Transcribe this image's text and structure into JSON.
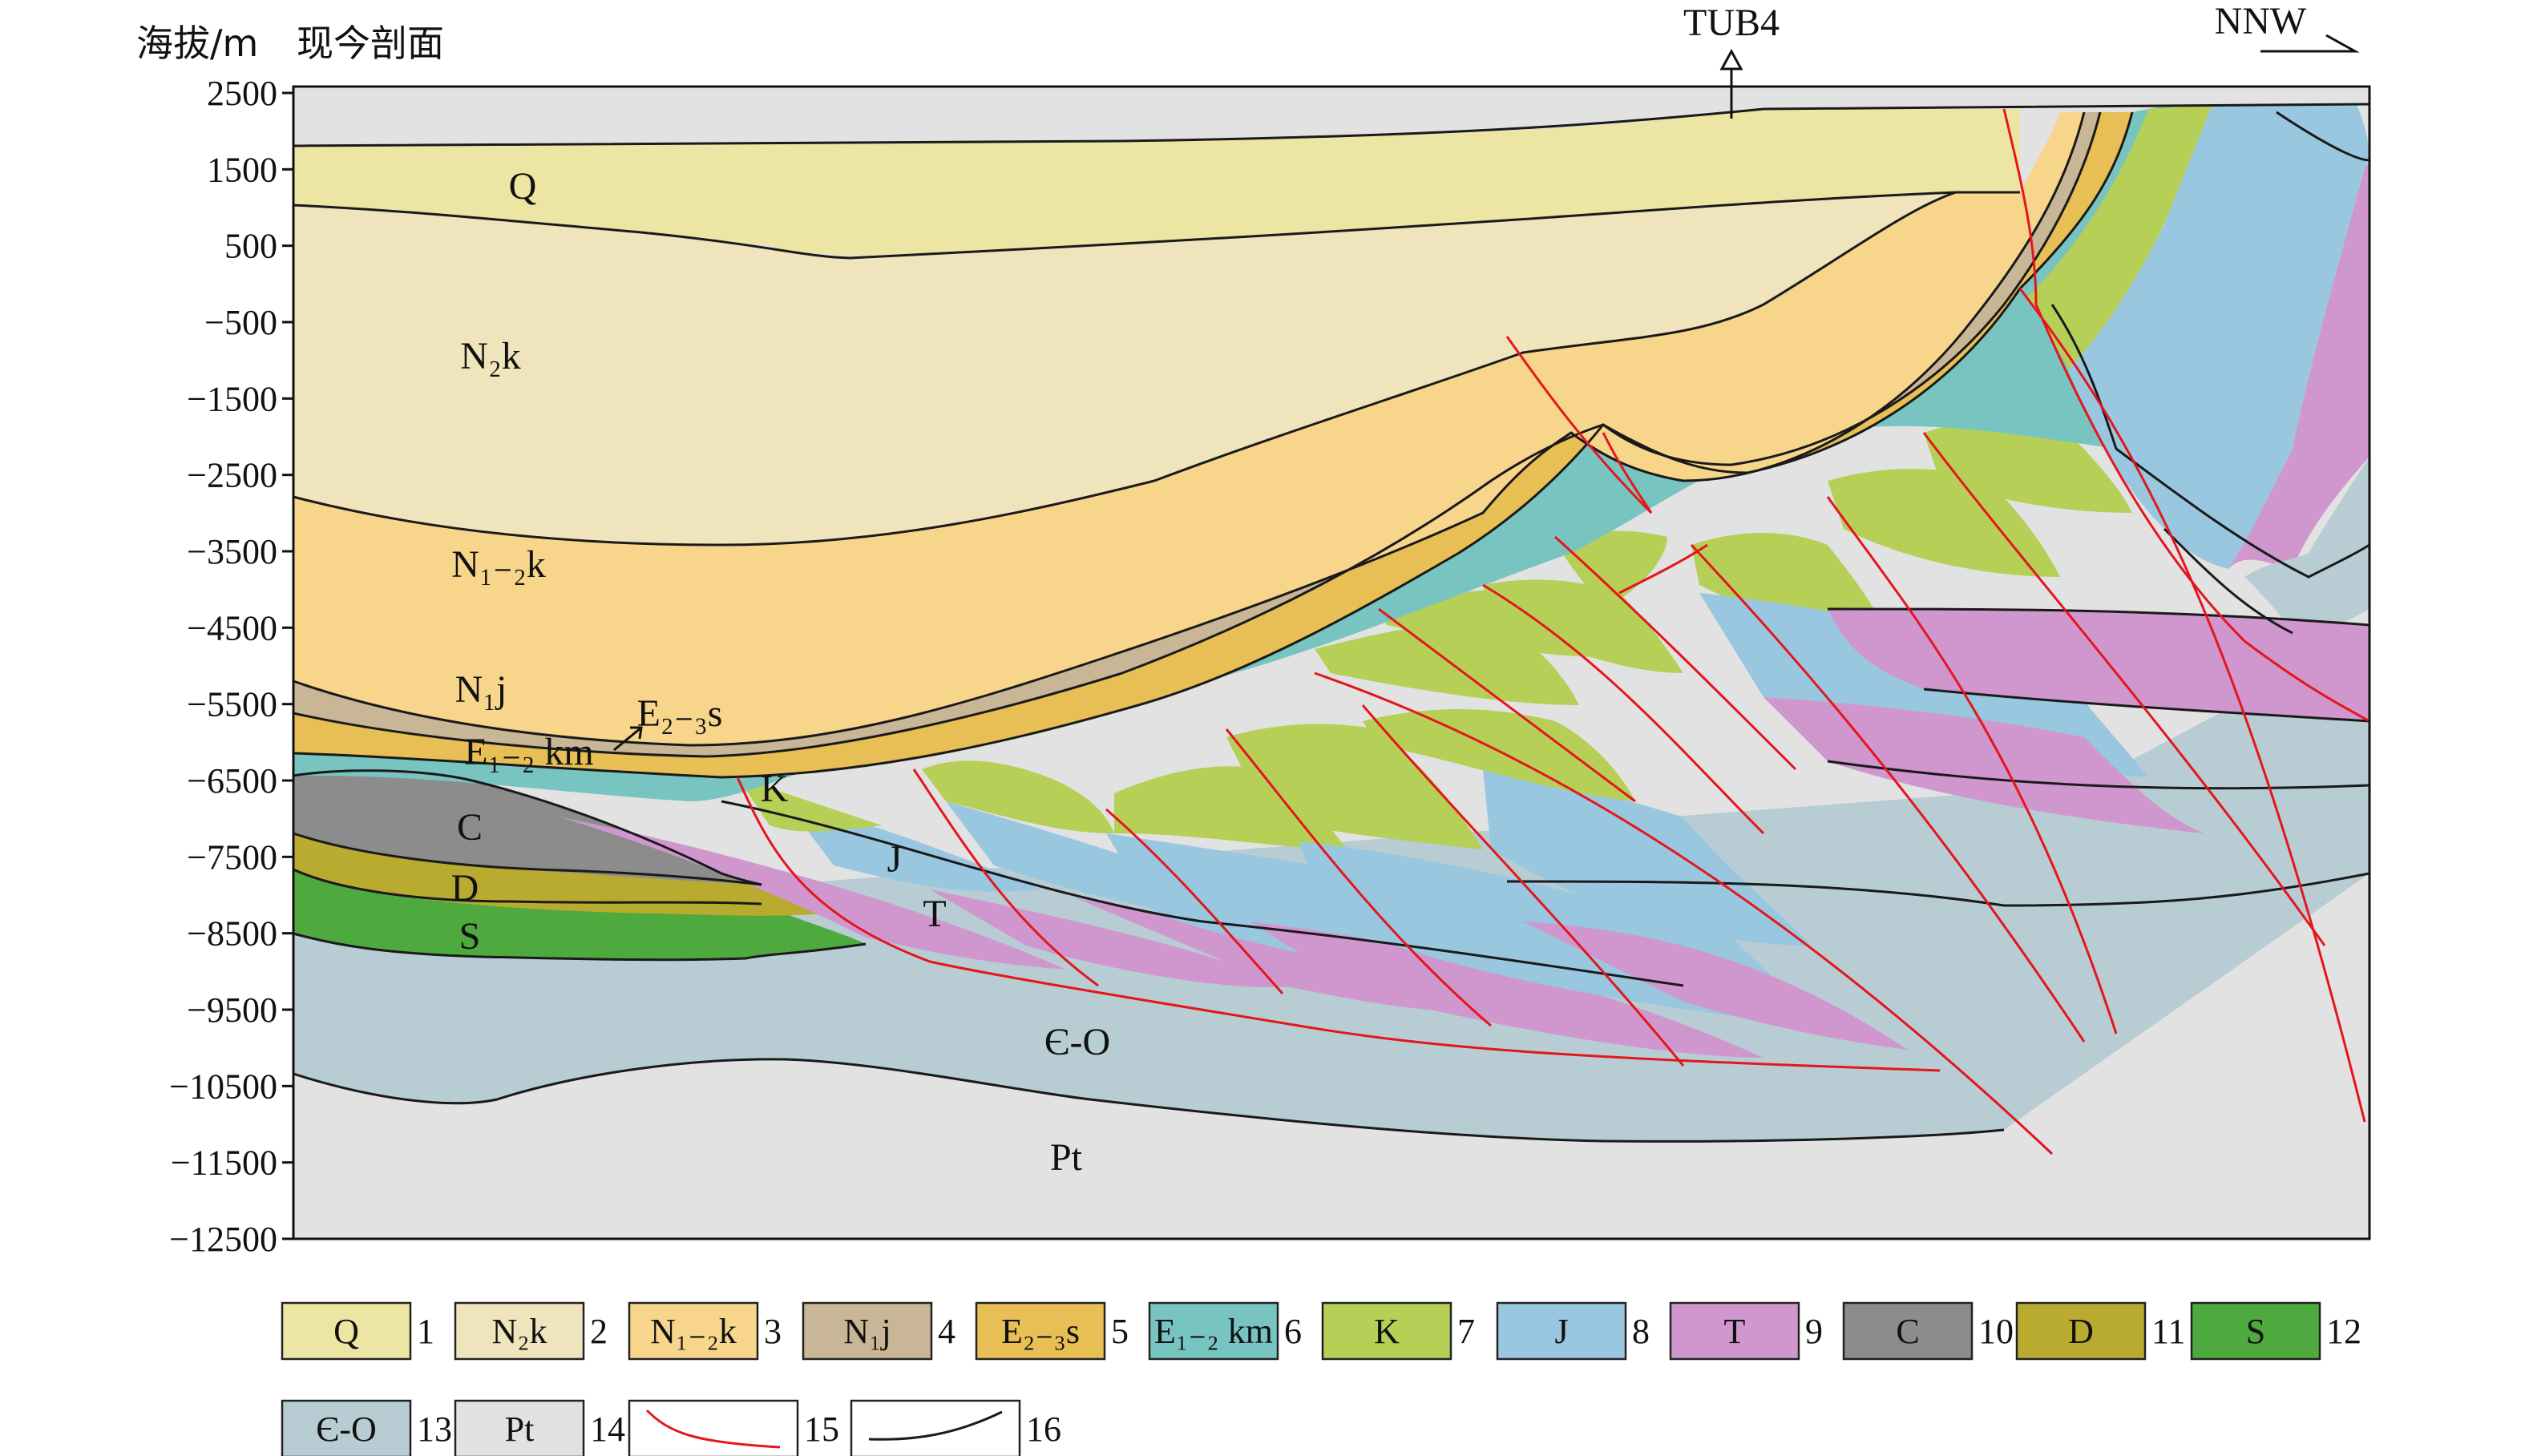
{
  "y_axis": {
    "title": "海拔/m",
    "ticks": [
      "2500",
      "1500",
      "500",
      "−500",
      "−1500",
      "−2500",
      "−3500",
      "−4500",
      "−5500",
      "−6500",
      "−7500",
      "−8500",
      "−9500",
      "−10500",
      "−11500",
      "−12500"
    ]
  },
  "section_title": "现今剖面",
  "well": {
    "name": "TUB4"
  },
  "direction": "NNW",
  "unit_labels": {
    "q": "Q",
    "n2k": "N₂k",
    "n12k": "N₁₋₂k",
    "n1j": "N₁j",
    "e23s": "E₂₋₃s",
    "e12km": "E₁₋₂ km",
    "c": "C",
    "d": "D",
    "s": "S",
    "k": "K",
    "j": "J",
    "t": "T",
    "co": "Є-O",
    "pt": "Pt"
  },
  "colors": {
    "Q": "#ede5a3",
    "N2k": "#f0e4bc",
    "N12k": "#f7d68c",
    "N1j": "#c9b697",
    "E23s": "#e8bf55",
    "E12km": "#78c4c1",
    "K": "#b6cf56",
    "J": "#99c7e0",
    "T": "#cf97cd",
    "C": "#8c8c8c",
    "D": "#b8ab2f",
    "S": "#4ea93e",
    "CO": "#b8ccd4",
    "Pt": "#e2e2e2",
    "fault": "#e4161c",
    "contact": "#1a1a1a"
  },
  "legend": [
    {
      "label": "Q",
      "num": "1"
    },
    {
      "label": "N₂k",
      "num": "2"
    },
    {
      "label": "N₁₋₂k",
      "num": "3"
    },
    {
      "label": "N₁j",
      "num": "4"
    },
    {
      "label": "E₂₋₃s",
      "num": "5"
    },
    {
      "label": "E₁₋₂ km",
      "num": "6"
    },
    {
      "label": "K",
      "num": "7"
    },
    {
      "label": "J",
      "num": "8"
    },
    {
      "label": "T",
      "num": "9"
    },
    {
      "label": "C",
      "num": "10"
    },
    {
      "label": "D",
      "num": "11"
    },
    {
      "label": "S",
      "num": "12"
    },
    {
      "label": "Є-O",
      "num": "13"
    },
    {
      "label": "Pt",
      "num": "14"
    },
    {
      "label": "",
      "num": "15",
      "icon": "fault-line-icon"
    },
    {
      "label": "",
      "num": "16",
      "icon": "contact-line-icon"
    }
  ]
}
